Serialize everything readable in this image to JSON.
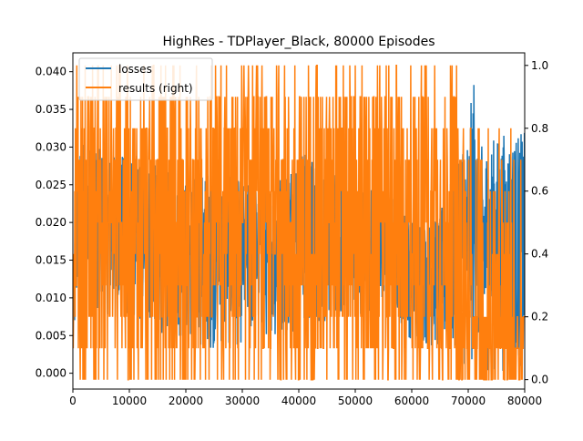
{
  "chart_data": {
    "type": "line",
    "title": "HighRes - TDPlayer_Black, 80000 Episodes",
    "xlabel": "",
    "ylabel": "",
    "xlim": [
      0,
      80000
    ],
    "ylim_left": [
      -0.0021,
      0.0425
    ],
    "ylim_right": [
      -0.03,
      1.04
    ],
    "grid": false,
    "legend_position": "top-left",
    "x_ticks": [
      "0",
      "10000",
      "20000",
      "30000",
      "40000",
      "50000",
      "60000",
      "70000",
      "80000"
    ],
    "y_left_ticks": [
      "0.000",
      "0.005",
      "0.010",
      "0.015",
      "0.020",
      "0.025",
      "0.030",
      "0.035",
      "0.040"
    ],
    "y_right_ticks": [
      "0.0",
      "0.2",
      "0.4",
      "0.6",
      "0.8",
      "1.0"
    ],
    "series": [
      {
        "name": "losses",
        "axis": "left",
        "color": "#1f77b4",
        "x": [
          0,
          500,
          1000,
          2000,
          4000,
          8000,
          12000,
          16000,
          20000,
          24000,
          28000,
          32000,
          36000,
          40000,
          44000,
          48000,
          52000,
          56000,
          60000,
          64000,
          66000,
          67500,
          68000,
          69000,
          70000,
          71000,
          72000,
          74000,
          76000,
          78000,
          80000
        ],
        "low": [
          0.0,
          0.006,
          0.008,
          0.007,
          0.008,
          0.007,
          0.006,
          0.005,
          0.004,
          0.003,
          0.003,
          0.004,
          0.004,
          0.005,
          0.006,
          0.007,
          0.008,
          0.009,
          0.004,
          0.003,
          0.002,
          0.001,
          0.0,
          0.0,
          0.0,
          0.0,
          0.0,
          0.0,
          0.0,
          0.0,
          0.0
        ],
        "high": [
          0.011,
          0.022,
          0.03,
          0.031,
          0.03,
          0.029,
          0.029,
          0.027,
          0.026,
          0.027,
          0.026,
          0.025,
          0.026,
          0.03,
          0.028,
          0.026,
          0.025,
          0.024,
          0.021,
          0.02,
          0.023,
          0.028,
          0.031,
          0.032,
          0.032,
          0.04,
          0.03,
          0.031,
          0.032,
          0.032,
          0.032
        ]
      },
      {
        "name": "results (right)",
        "axis": "right",
        "color": "#ff7f0e",
        "levels": [
          0.0,
          0.1,
          0.2,
          0.3,
          0.4,
          0.5,
          0.6,
          0.7,
          0.8,
          0.9,
          1.0
        ],
        "x_range": [
          0,
          68000
        ],
        "tail_x_range": [
          68000,
          80000
        ],
        "tail_levels": [
          0.0,
          0.1,
          0.2,
          0.3,
          0.4,
          0.5,
          0.6,
          0.7,
          0.8
        ]
      }
    ]
  }
}
